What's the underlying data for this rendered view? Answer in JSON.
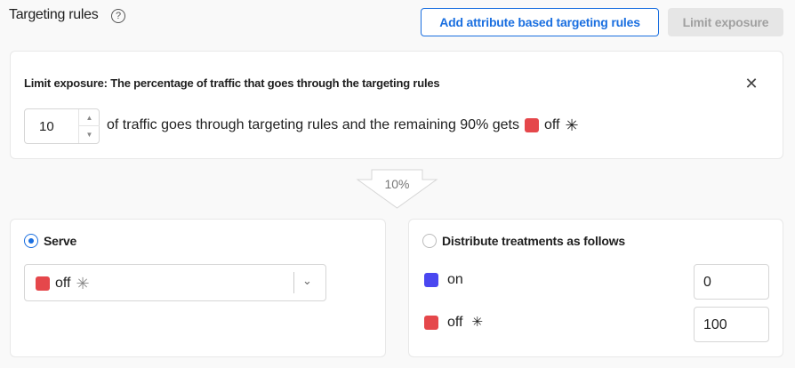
{
  "header": {
    "title": "Targeting rules",
    "help_icon": "question-circle-icon",
    "add_button": "Add attribute based targeting rules",
    "limit_button": "Limit exposure"
  },
  "limit_panel": {
    "heading": "Limit exposure: The percentage of traffic that goes through the targeting rules",
    "percent_value": "10",
    "text": "of traffic goes through targeting rules and the remaining 90% gets",
    "treatment": "off",
    "treatment_color": "#e5474b",
    "default_icon": "asterisk-icon"
  },
  "flow_arrow": {
    "label": "10%"
  },
  "serve_panel": {
    "label": "Serve",
    "selected": true,
    "select_value": "off",
    "select_color": "#e5474b"
  },
  "distribute_panel": {
    "label": "Distribute treatments as follows",
    "selected": false,
    "treatments": [
      {
        "name": "on",
        "color": "#4a47f0",
        "value": "0",
        "default": false
      },
      {
        "name": "off",
        "color": "#e5474b",
        "value": "100",
        "default": true
      }
    ]
  },
  "colors": {
    "accent": "#1a6fe0"
  }
}
